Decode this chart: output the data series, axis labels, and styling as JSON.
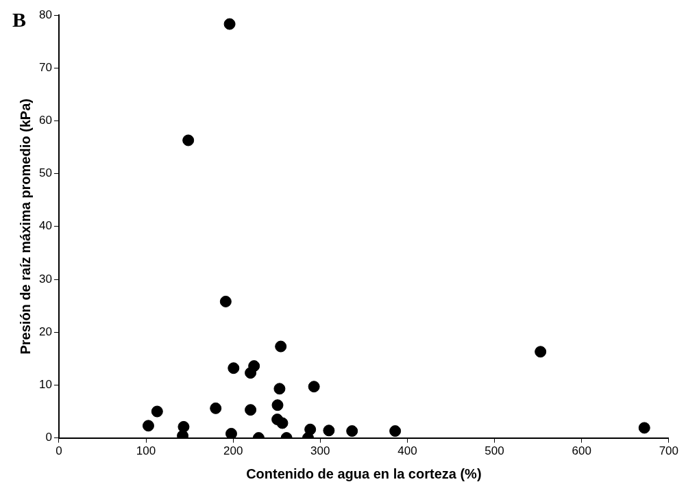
{
  "chart_data": {
    "type": "scatter",
    "xlabel": "Contenido de agua en la corteza (%)",
    "ylabel": "Presión de raíz máxima promedio (kPa)",
    "annotations": [
      "B"
    ],
    "x": [
      196,
      148.5,
      191.5,
      254.7,
      200.5,
      224,
      220,
      253.3,
      292.8,
      180,
      220,
      251,
      112.8,
      102.7,
      143.2,
      142.1,
      250.7,
      256.5,
      197.9,
      229.3,
      261.3,
      286,
      288.5,
      309.9,
      336.5,
      386,
      552.8,
      672
    ],
    "series": [
      {
        "color": "#000000",
        "values": [
          78.3,
          56.3,
          25.8,
          17.3,
          13.2,
          13.6,
          12.3,
          9.3,
          9.7,
          5.6,
          5.3,
          6.2,
          5.0,
          2.3,
          2.1,
          0.4,
          3.5,
          2.8,
          0.8,
          0,
          0,
          0,
          1.6,
          1.4,
          1.3,
          1.3,
          16.3,
          1.9
        ]
      }
    ],
    "xlim": [
      0,
      700
    ],
    "xticks": [
      0,
      100,
      200,
      300,
      400,
      500,
      600,
      700
    ],
    "ylim": [
      0,
      80
    ],
    "yticks": [
      0,
      10,
      20,
      30,
      40,
      50,
      60,
      70,
      80
    ],
    "grid": false,
    "legend": false,
    "marker": "circle"
  }
}
